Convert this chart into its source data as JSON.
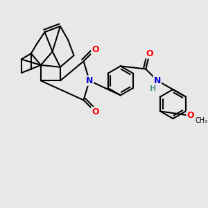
{
  "bg_color": "#e8e8e8",
  "bond_color": "#000000",
  "bond_width": 1.5,
  "atom_colors": {
    "O": "#ff0000",
    "N": "#0000cd",
    "H": "#4a9898",
    "C": "#000000"
  },
  "font_size_atom": 9
}
